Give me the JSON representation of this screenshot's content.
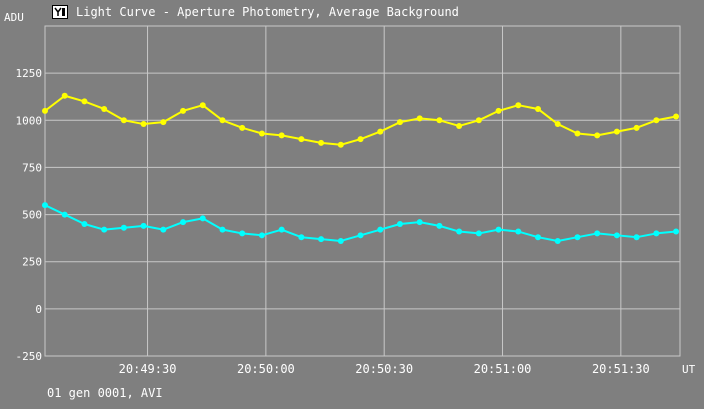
{
  "window": {
    "title": "Light Curve - Aperture Photometry, Average Background",
    "footer": "01 gen 0001, AVI"
  },
  "colors": {
    "background": "#7f7f7f",
    "grid": "#c8c8c8",
    "series_upper": "#ffff00",
    "series_lower": "#00ffff"
  },
  "chart_data": {
    "type": "line",
    "title": "Light Curve - Aperture Photometry, Average Background",
    "xlabel": "UT",
    "ylabel": "ADU",
    "xlim": [
      "20:49:04",
      "20:51:45"
    ],
    "ylim": [
      -250,
      1500
    ],
    "xticks": [
      "20:49:30",
      "20:50:00",
      "20:50:30",
      "20:51:00",
      "20:51:30"
    ],
    "yticks": [
      -250,
      0,
      250,
      500,
      750,
      1000,
      1250
    ],
    "grid": true,
    "markers": true,
    "series": [
      {
        "color": "#ffff00",
        "x": [
          "20:49:04",
          "20:49:09",
          "20:49:14",
          "20:49:19",
          "20:49:24",
          "20:49:29",
          "20:49:34",
          "20:49:39",
          "20:49:44",
          "20:49:49",
          "20:49:54",
          "20:49:59",
          "20:50:04",
          "20:50:09",
          "20:50:14",
          "20:50:19",
          "20:50:24",
          "20:50:29",
          "20:50:34",
          "20:50:39",
          "20:50:44",
          "20:50:49",
          "20:50:54",
          "20:50:59",
          "20:51:04",
          "20:51:09",
          "20:51:14",
          "20:51:19",
          "20:51:24",
          "20:51:29",
          "20:51:34",
          "20:51:39",
          "20:51:44"
        ],
        "y": [
          1050,
          1130,
          1100,
          1060,
          1000,
          980,
          990,
          1050,
          1080,
          1000,
          960,
          930,
          920,
          900,
          880,
          870,
          900,
          940,
          990,
          1010,
          1000,
          970,
          1000,
          1050,
          1080,
          1060,
          980,
          930,
          920,
          940,
          960,
          1000,
          1020
        ]
      },
      {
        "color": "#00ffff",
        "x": [
          "20:49:04",
          "20:49:09",
          "20:49:14",
          "20:49:19",
          "20:49:24",
          "20:49:29",
          "20:49:34",
          "20:49:39",
          "20:49:44",
          "20:49:49",
          "20:49:54",
          "20:49:59",
          "20:50:04",
          "20:50:09",
          "20:50:14",
          "20:50:19",
          "20:50:24",
          "20:50:29",
          "20:50:34",
          "20:50:39",
          "20:50:44",
          "20:50:49",
          "20:50:54",
          "20:50:59",
          "20:51:04",
          "20:51:09",
          "20:51:14",
          "20:51:19",
          "20:51:24",
          "20:51:29",
          "20:51:34",
          "20:51:39",
          "20:51:44"
        ],
        "y": [
          550,
          500,
          450,
          420,
          430,
          440,
          420,
          460,
          480,
          420,
          400,
          390,
          420,
          380,
          370,
          360,
          390,
          420,
          450,
          460,
          440,
          410,
          400,
          420,
          410,
          380,
          360,
          380,
          400,
          390,
          380,
          400,
          410
        ]
      }
    ]
  }
}
